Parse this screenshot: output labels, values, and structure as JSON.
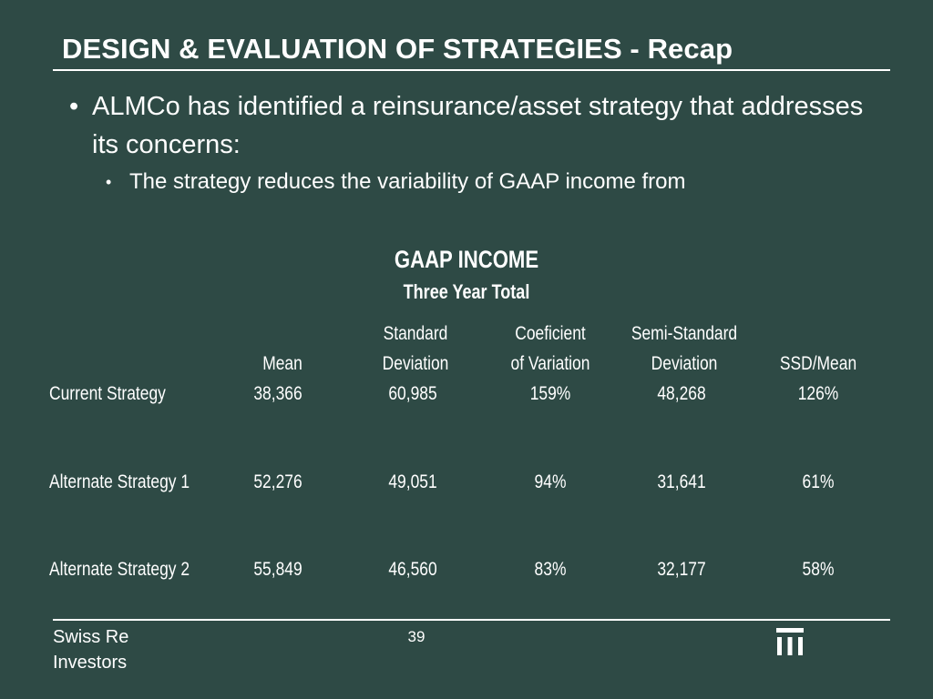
{
  "slide": {
    "title": "DESIGN & EVALUATION OF STRATEGIES - Recap",
    "bullet1": "ALMCo has identified a reinsurance/asset strategy that addresses its concerns:",
    "bullet2": "The strategy reduces the variability of GAAP income from",
    "bullet_glyph": "•"
  },
  "table": {
    "title": "GAAP INCOME",
    "subtitle": "Three Year Total",
    "headers": [
      {
        "line1": "",
        "line2": "Mean"
      },
      {
        "line1": "Standard",
        "line2": "Deviation"
      },
      {
        "line1": "Coeficient",
        "line2": "of Variation"
      },
      {
        "line1": "Semi-Standard",
        "line2": "Deviation"
      },
      {
        "line1": "",
        "line2": "SSD/Mean"
      }
    ],
    "rows": [
      {
        "label": "Current Strategy",
        "values": [
          "38,366",
          "60,985",
          "159%",
          "48,268",
          "126%"
        ]
      },
      {
        "label": "Alternate Strategy 1",
        "values": [
          "52,276",
          "49,051",
          "94%",
          "31,641",
          "61%"
        ]
      },
      {
        "label": "Alternate Strategy 2",
        "values": [
          "55,849",
          "46,560",
          "83%",
          "32,177",
          "58%"
        ]
      }
    ]
  },
  "footer": {
    "brand_line1": "Swiss Re",
    "brand_line2": "Investors",
    "page_number": "39",
    "logo_icon": "swiss-re-logo-icon"
  }
}
